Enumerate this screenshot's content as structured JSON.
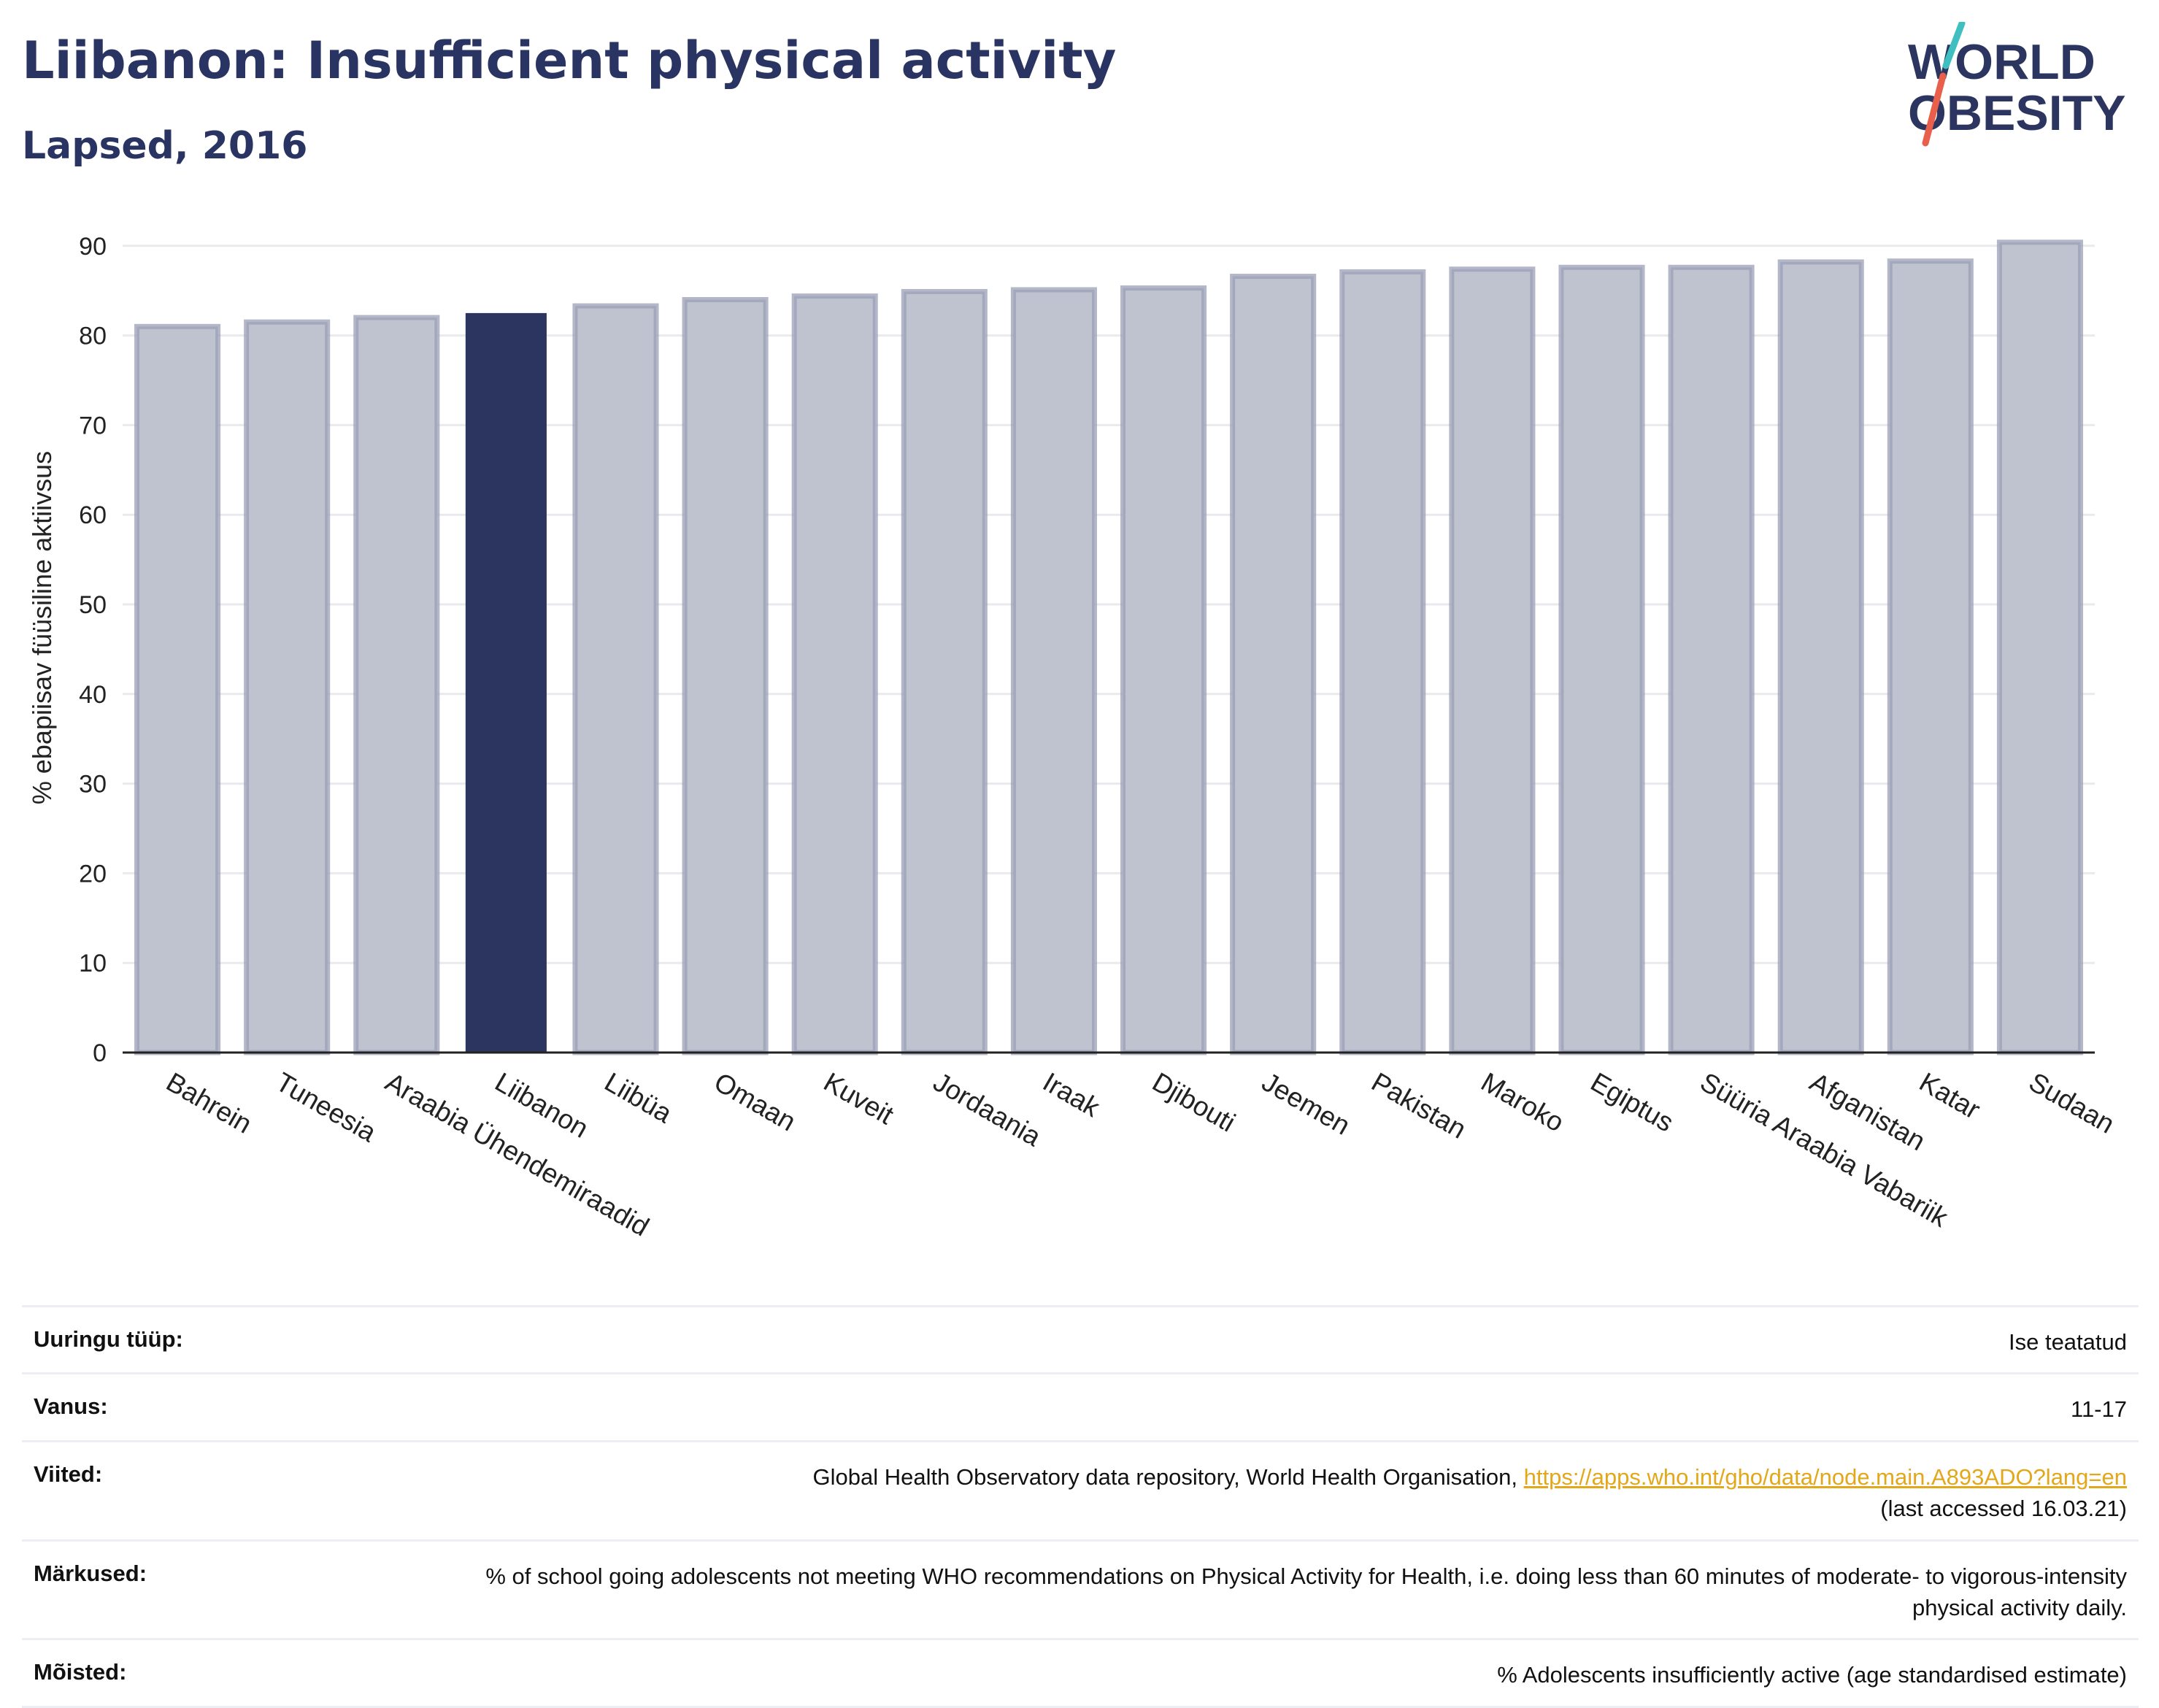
{
  "header": {
    "title": "Liibanon: Insufficient physical activity",
    "subtitle": "Lapsed, 2016"
  },
  "logo": {
    "line1": "WORLD",
    "line2": "OBESITY"
  },
  "colors": {
    "highlight": "#2b3560",
    "bar": "#bfc2cf",
    "bar_border": "#9a9fb5",
    "grid": "#e9e9ee",
    "accent_teal": "#3fbfbf",
    "accent_red": "#e8604c"
  },
  "chart_data": {
    "type": "bar",
    "title": "Liibanon: Insufficient physical activity",
    "subtitle": "Lapsed, 2016",
    "xlabel": "",
    "ylabel": "% ebapiisav füüsiline aktiivsus",
    "ylim": [
      0,
      90
    ],
    "yticks": [
      0,
      10,
      20,
      30,
      40,
      50,
      60,
      70,
      80,
      90
    ],
    "grid": true,
    "highlight": "Liibanon",
    "categories": [
      "Bahrein",
      "Tuneesia",
      "Araabia Ühendemiraadid",
      "Liibanon",
      "Liibüa",
      "Omaan",
      "Kuveit",
      "Jordaania",
      "Iraak",
      "Djibouti",
      "Jeemen",
      "Pakistan",
      "Maroko",
      "Egiptus",
      "Süüria Araabia Vabariik",
      "Afganistan",
      "Katar",
      "Sudaan"
    ],
    "values": [
      81.0,
      81.5,
      82.0,
      82.5,
      83.3,
      84.0,
      84.4,
      84.9,
      85.1,
      85.3,
      86.6,
      87.1,
      87.4,
      87.6,
      87.6,
      88.2,
      88.3,
      90.4
    ]
  },
  "info": {
    "rows": [
      {
        "label": "Uuringu tüüp:",
        "value": "Ise teatatud"
      },
      {
        "label": "Vanus:",
        "value": "11-17"
      },
      {
        "label": "Viited:",
        "value_prefix": "Global Health Observatory data repository, World Health Organisation, ",
        "link": "https://apps.who.int/gho/data/node.main.A893ADO?lang=en",
        "value_suffix": "(last accessed 16.03.21)"
      },
      {
        "label": "Märkused:",
        "value": "% of school going adolescents not meeting WHO recommendations on Physical Activity for Health, i.e. doing less than 60 minutes of moderate- to vigorous-intensity physical activity daily."
      },
      {
        "label": "Mõisted:",
        "value": "% Adolescents insufficiently active (age standardised estimate)"
      }
    ]
  }
}
